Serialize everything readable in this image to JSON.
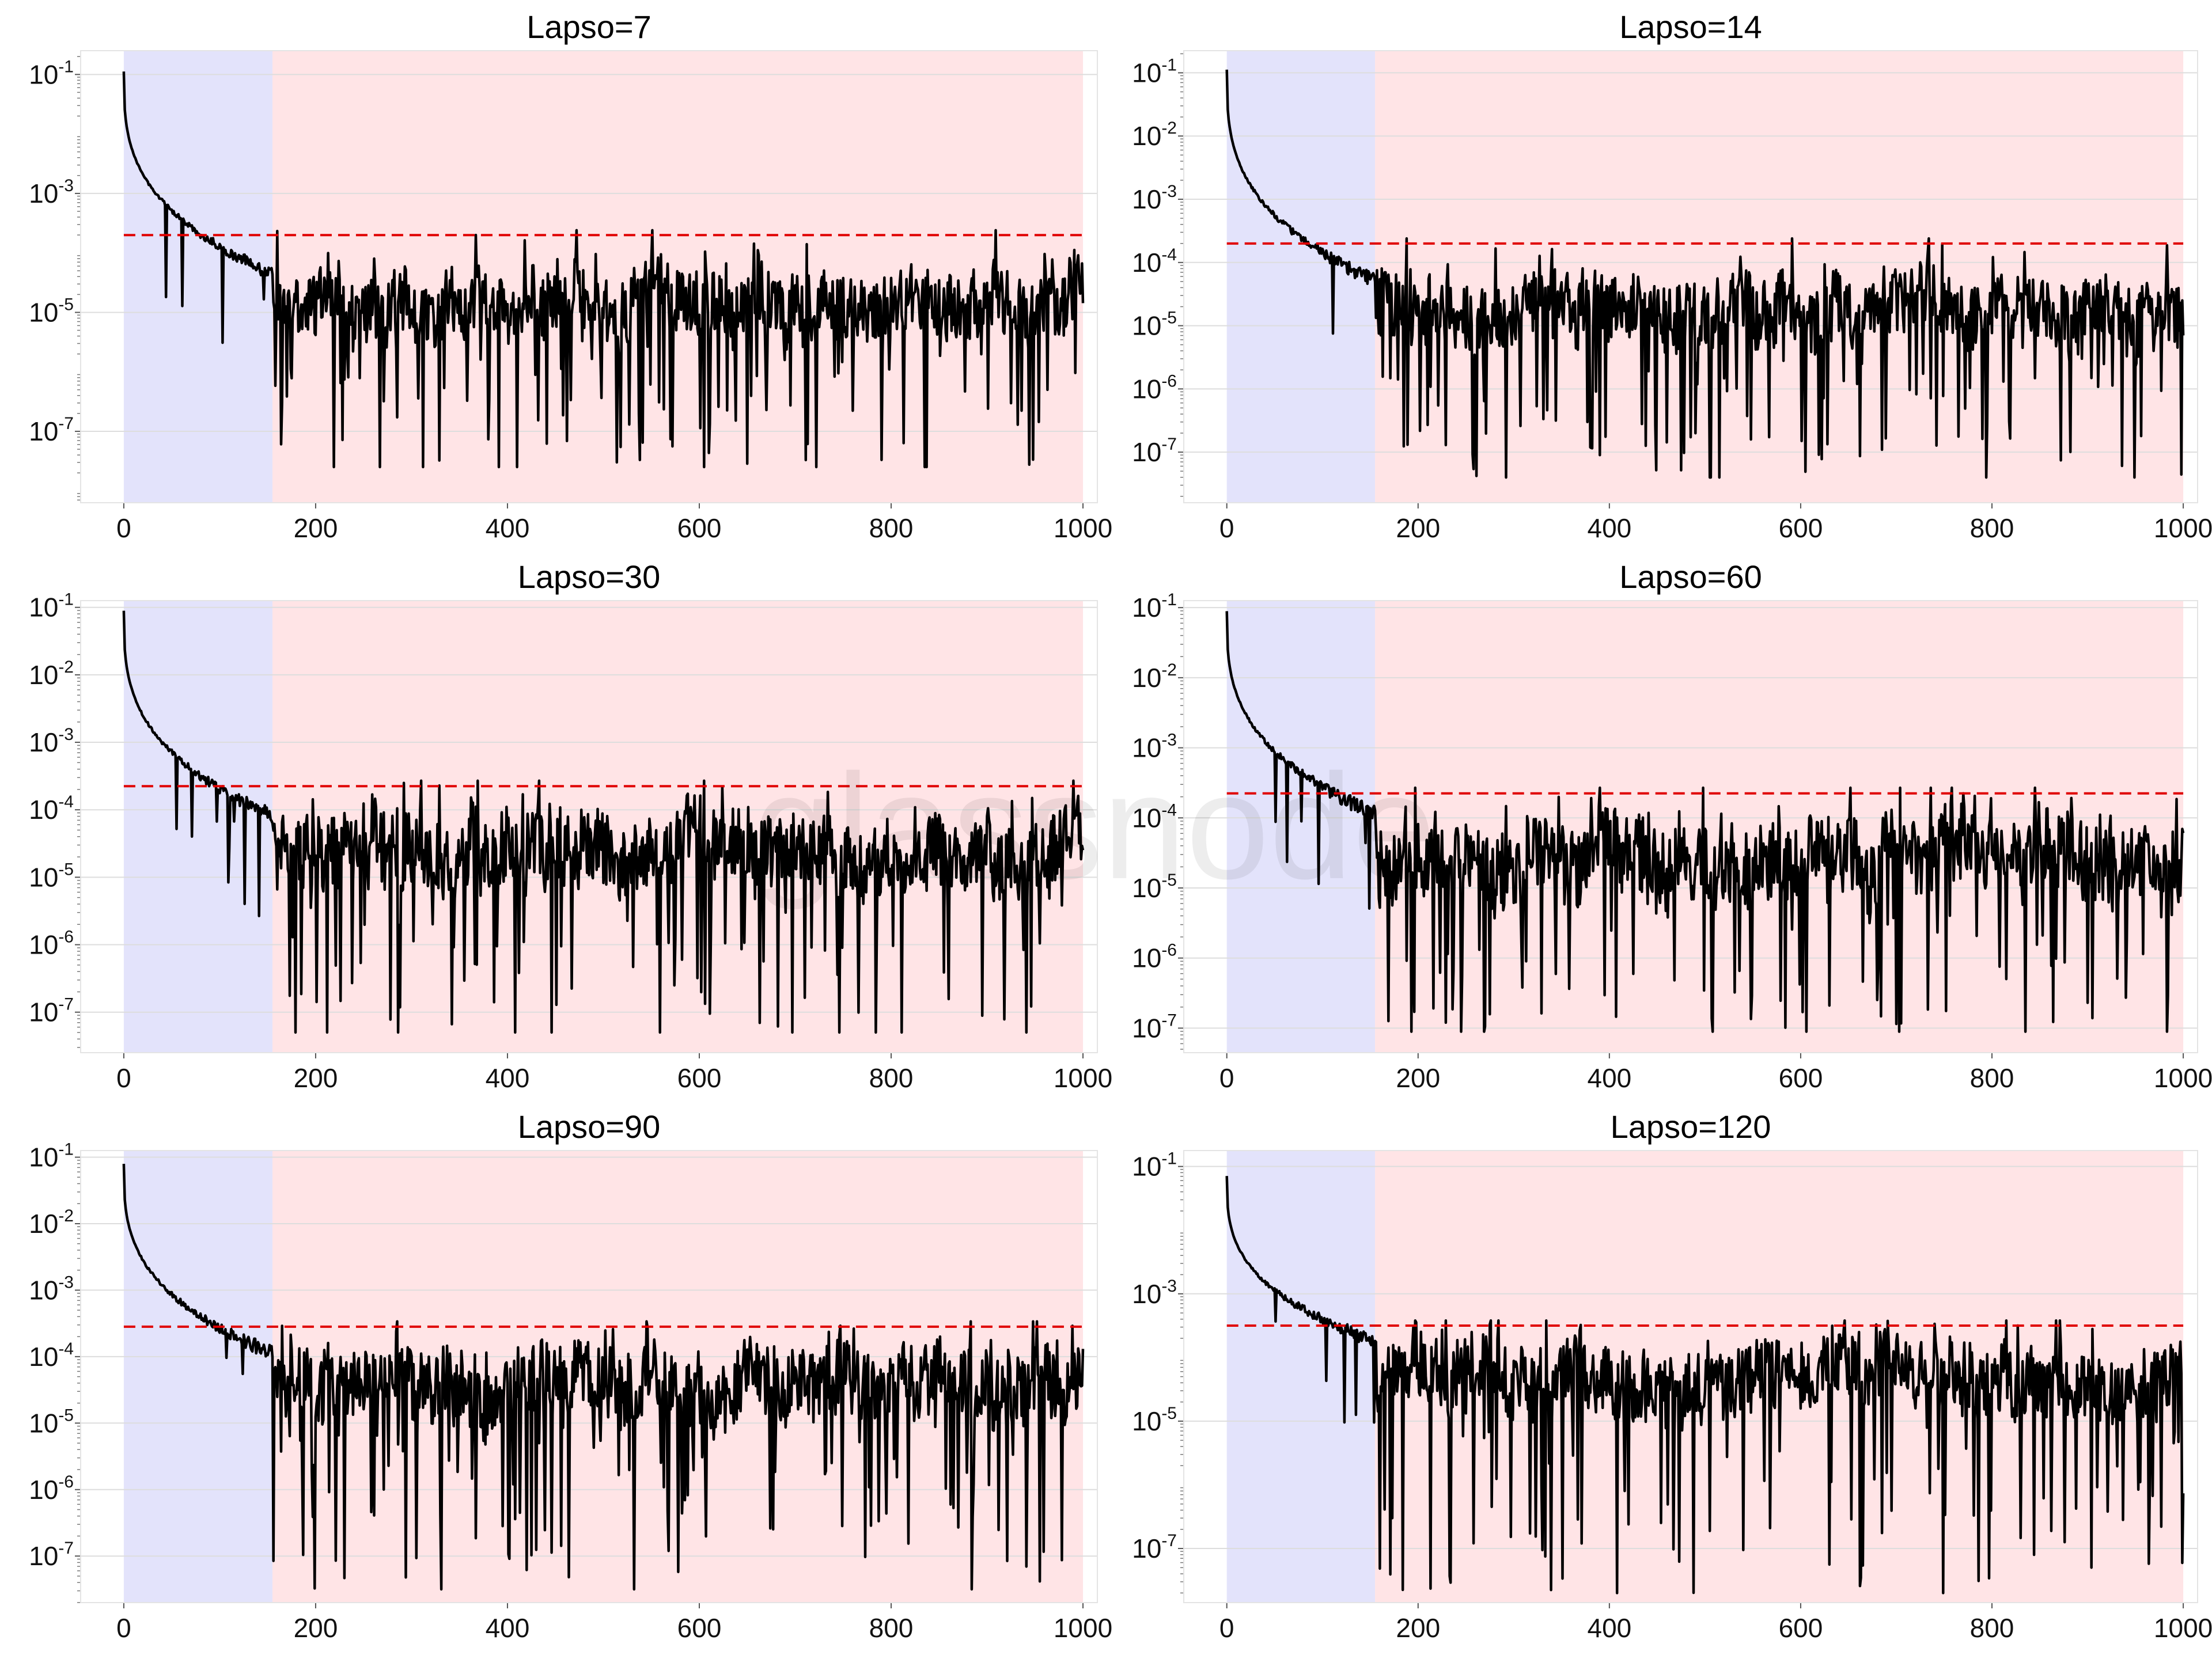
{
  "watermark": "glassnode",
  "colors": {
    "line": "#000000",
    "threshold": "#e00000",
    "training_band": "#e3e3fb",
    "test_band": "#ffe4e6",
    "grid": "#dddddd"
  },
  "chart_data": [
    {
      "type": "line",
      "title": "Lapso=7",
      "xlabel": "",
      "ylabel": "",
      "xlim": [
        -45,
        1015
      ],
      "x_ticks": [
        "0",
        "200",
        "400",
        "600",
        "800",
        "1000"
      ],
      "y_scale": "log",
      "ylim_log10": [
        -8.2,
        -0.6
      ],
      "y_ticks": [
        {
          "base": "10",
          "exp": "-1"
        },
        {
          "base": "10",
          "exp": "-3"
        },
        {
          "base": "10",
          "exp": "-5"
        },
        {
          "base": "10",
          "exp": "-7"
        }
      ],
      "shaded_regions": [
        {
          "from": 0,
          "to": 155,
          "label": "blue"
        },
        {
          "from": 155,
          "to": 1000,
          "label": "red"
        }
      ],
      "threshold_log10": -3.7,
      "initial_log10": -0.95,
      "decay_end_log10": -4.35,
      "noise_mid_log10": -4.85,
      "spike_floor_log10": -7.6,
      "seed": 7
    },
    {
      "type": "line",
      "title": "Lapso=14",
      "xlabel": "",
      "ylabel": "",
      "xlim": [
        -45,
        1015
      ],
      "x_ticks": [
        "0",
        "200",
        "400",
        "600",
        "800",
        "1000"
      ],
      "y_scale": "log",
      "ylim_log10": [
        -7.8,
        -0.65
      ],
      "y_ticks": [
        {
          "base": "10",
          "exp": "-1"
        },
        {
          "base": "10",
          "exp": "-2"
        },
        {
          "base": "10",
          "exp": "-3"
        },
        {
          "base": "10",
          "exp": "-4"
        },
        {
          "base": "10",
          "exp": "-5"
        },
        {
          "base": "10",
          "exp": "-6"
        },
        {
          "base": "10",
          "exp": "-7"
        }
      ],
      "shaded_regions": [
        {
          "from": 0,
          "to": 155,
          "label": "blue"
        },
        {
          "from": 155,
          "to": 1000,
          "label": "red"
        }
      ],
      "threshold_log10": -3.7,
      "initial_log10": -0.95,
      "decay_end_log10": -4.3,
      "noise_mid_log10": -4.75,
      "spike_floor_log10": -7.4,
      "seed": 14
    },
    {
      "type": "line",
      "title": "Lapso=30",
      "xlabel": "",
      "ylabel": "",
      "xlim": [
        -45,
        1015
      ],
      "x_ticks": [
        "0",
        "200",
        "400",
        "600",
        "800",
        "1000"
      ],
      "y_scale": "log",
      "ylim_log10": [
        -7.6,
        -0.9
      ],
      "y_ticks": [
        {
          "base": "10",
          "exp": "-1"
        },
        {
          "base": "10",
          "exp": "-2"
        },
        {
          "base": "10",
          "exp": "-3"
        },
        {
          "base": "10",
          "exp": "-4"
        },
        {
          "base": "10",
          "exp": "-5"
        },
        {
          "base": "10",
          "exp": "-6"
        },
        {
          "base": "10",
          "exp": "-7"
        }
      ],
      "shaded_regions": [
        {
          "from": 0,
          "to": 155,
          "label": "blue"
        },
        {
          "from": 155,
          "to": 1000,
          "label": "red"
        }
      ],
      "threshold_log10": -3.65,
      "initial_log10": -1.05,
      "decay_end_log10": -4.1,
      "noise_mid_log10": -4.6,
      "spike_floor_log10": -7.3,
      "seed": 30
    },
    {
      "type": "line",
      "title": "Lapso=60",
      "xlabel": "",
      "ylabel": "",
      "xlim": [
        -45,
        1015
      ],
      "x_ticks": [
        "0",
        "200",
        "400",
        "600",
        "800",
        "1000"
      ],
      "y_scale": "log",
      "ylim_log10": [
        -7.35,
        -0.9
      ],
      "y_ticks": [
        {
          "base": "10",
          "exp": "-1"
        },
        {
          "base": "10",
          "exp": "-2"
        },
        {
          "base": "10",
          "exp": "-3"
        },
        {
          "base": "10",
          "exp": "-4"
        },
        {
          "base": "10",
          "exp": "-5"
        },
        {
          "base": "10",
          "exp": "-6"
        },
        {
          "base": "10",
          "exp": "-7"
        }
      ],
      "shaded_regions": [
        {
          "from": 0,
          "to": 155,
          "label": "blue"
        },
        {
          "from": 155,
          "to": 1000,
          "label": "red"
        }
      ],
      "threshold_log10": -3.65,
      "initial_log10": -1.05,
      "decay_end_log10": -3.95,
      "noise_mid_log10": -4.55,
      "spike_floor_log10": -7.05,
      "seed": 60
    },
    {
      "type": "line",
      "title": "Lapso=90",
      "xlabel": "",
      "ylabel": "",
      "xlim": [
        -45,
        1015
      ],
      "x_ticks": [
        "0",
        "200",
        "400",
        "600",
        "800",
        "1000"
      ],
      "y_scale": "log",
      "ylim_log10": [
        -7.7,
        -0.9
      ],
      "y_ticks": [
        {
          "base": "10",
          "exp": "-1"
        },
        {
          "base": "10",
          "exp": "-2"
        },
        {
          "base": "10",
          "exp": "-3"
        },
        {
          "base": "10",
          "exp": "-4"
        },
        {
          "base": "10",
          "exp": "-5"
        },
        {
          "base": "10",
          "exp": "-6"
        },
        {
          "base": "10",
          "exp": "-7"
        }
      ],
      "shaded_regions": [
        {
          "from": 0,
          "to": 155,
          "label": "blue"
        },
        {
          "from": 155,
          "to": 1000,
          "label": "red"
        }
      ],
      "threshold_log10": -3.55,
      "initial_log10": -1.1,
      "decay_end_log10": -3.95,
      "noise_mid_log10": -4.45,
      "spike_floor_log10": -7.5,
      "seed": 90
    },
    {
      "type": "line",
      "title": "Lapso=120",
      "xlabel": "",
      "ylabel": "",
      "xlim": [
        -45,
        1015
      ],
      "x_ticks": [
        "0",
        "200",
        "400",
        "600",
        "800",
        "1000"
      ],
      "y_scale": "log",
      "ylim_log10": [
        -7.85,
        -0.75
      ],
      "y_ticks": [
        {
          "base": "10",
          "exp": "-1"
        },
        {
          "base": "10",
          "exp": "-3"
        },
        {
          "base": "10",
          "exp": "-5"
        },
        {
          "base": "10",
          "exp": "-7"
        }
      ],
      "shaded_regions": [
        {
          "from": 0,
          "to": 155,
          "label": "blue"
        },
        {
          "from": 155,
          "to": 1000,
          "label": "red"
        }
      ],
      "threshold_log10": -3.5,
      "initial_log10": -1.15,
      "decay_end_log10": -3.75,
      "noise_mid_log10": -4.3,
      "spike_floor_log10": -7.7,
      "seed": 120
    }
  ]
}
